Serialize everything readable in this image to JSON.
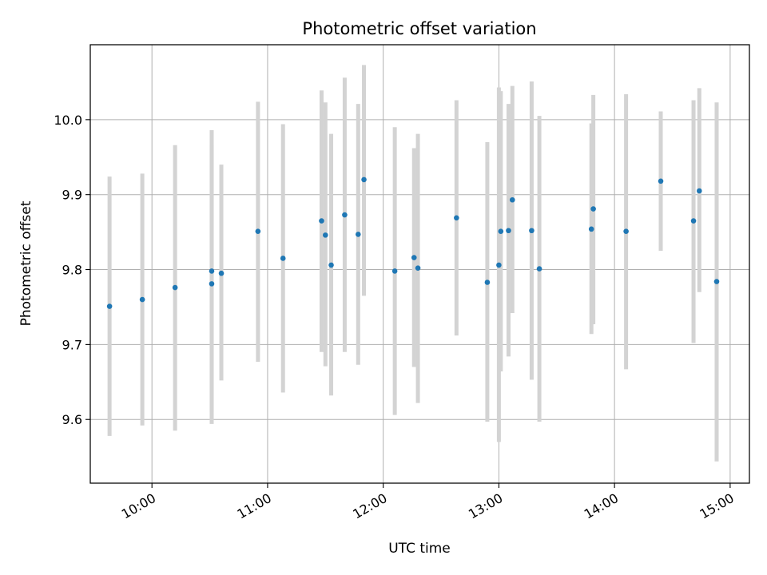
{
  "chart_data": {
    "type": "scatter",
    "title": "Photometric offset variation",
    "xlabel": "UTC time",
    "ylabel": "Photometric offset",
    "x_unit": "time of day (UTC)",
    "xlim": [
      "09:28",
      "15:10"
    ],
    "ylim": [
      9.515,
      10.1
    ],
    "x_ticks": [
      "10:00",
      "11:00",
      "12:00",
      "13:00",
      "14:00",
      "15:00"
    ],
    "y_ticks": [
      "9.6",
      "9.7",
      "9.8",
      "9.9",
      "10.0"
    ],
    "grid": true,
    "legend": "none",
    "colors": {
      "point": "#1f77b4",
      "errorbar": "#d3d3d3",
      "grid": "#b0b0b0"
    },
    "points": [
      {
        "x": "09:38",
        "y": 9.751,
        "err_low": 9.578,
        "err_high": 9.924
      },
      {
        "x": "09:55",
        "y": 9.76,
        "err_low": 9.592,
        "err_high": 9.928
      },
      {
        "x": "10:12",
        "y": 9.776,
        "err_low": 9.585,
        "err_high": 9.966
      },
      {
        "x": "10:31",
        "y": 9.781,
        "err_low": 9.594,
        "err_high": 9.967
      },
      {
        "x": "10:31",
        "y": 9.798,
        "err_low": 9.61,
        "err_high": 9.986
      },
      {
        "x": "10:36",
        "y": 9.795,
        "err_low": 9.652,
        "err_high": 9.94
      },
      {
        "x": "10:55",
        "y": 9.851,
        "err_low": 9.677,
        "err_high": 10.024
      },
      {
        "x": "11:08",
        "y": 9.815,
        "err_low": 9.636,
        "err_high": 9.994
      },
      {
        "x": "11:28",
        "y": 9.865,
        "err_low": 9.69,
        "err_high": 10.039
      },
      {
        "x": "11:30",
        "y": 9.846,
        "err_low": 9.671,
        "err_high": 10.023
      },
      {
        "x": "11:33",
        "y": 9.806,
        "err_low": 9.632,
        "err_high": 9.981
      },
      {
        "x": "11:40",
        "y": 9.873,
        "err_low": 9.69,
        "err_high": 10.056
      },
      {
        "x": "11:47",
        "y": 9.847,
        "err_low": 9.673,
        "err_high": 10.021
      },
      {
        "x": "11:50",
        "y": 9.92,
        "err_low": 9.765,
        "err_high": 10.073
      },
      {
        "x": "12:06",
        "y": 9.798,
        "err_low": 9.606,
        "err_high": 9.99
      },
      {
        "x": "12:16",
        "y": 9.816,
        "err_low": 9.67,
        "err_high": 9.962
      },
      {
        "x": "12:18",
        "y": 9.802,
        "err_low": 9.622,
        "err_high": 9.981
      },
      {
        "x": "12:38",
        "y": 9.869,
        "err_low": 9.712,
        "err_high": 10.026
      },
      {
        "x": "12:54",
        "y": 9.783,
        "err_low": 9.597,
        "err_high": 9.97
      },
      {
        "x": "13:00",
        "y": 9.806,
        "err_low": 9.57,
        "err_high": 10.043
      },
      {
        "x": "13:01",
        "y": 9.851,
        "err_low": 9.664,
        "err_high": 10.038
      },
      {
        "x": "13:05",
        "y": 9.852,
        "err_low": 9.684,
        "err_high": 10.021
      },
      {
        "x": "13:07",
        "y": 9.893,
        "err_low": 9.742,
        "err_high": 10.045
      },
      {
        "x": "13:17",
        "y": 9.852,
        "err_low": 9.653,
        "err_high": 10.051
      },
      {
        "x": "13:21",
        "y": 9.801,
        "err_low": 9.597,
        "err_high": 10.005
      },
      {
        "x": "13:48",
        "y": 9.854,
        "err_low": 9.714,
        "err_high": 9.995
      },
      {
        "x": "13:49",
        "y": 9.881,
        "err_low": 9.727,
        "err_high": 10.033
      },
      {
        "x": "14:06",
        "y": 9.851,
        "err_low": 9.667,
        "err_high": 10.034
      },
      {
        "x": "14:24",
        "y": 9.918,
        "err_low": 9.825,
        "err_high": 10.011
      },
      {
        "x": "14:41",
        "y": 9.865,
        "err_low": 9.702,
        "err_high": 10.026
      },
      {
        "x": "14:44",
        "y": 9.905,
        "err_low": 9.77,
        "err_high": 10.042
      },
      {
        "x": "14:53",
        "y": 9.784,
        "err_low": 9.544,
        "err_high": 10.023
      }
    ]
  }
}
